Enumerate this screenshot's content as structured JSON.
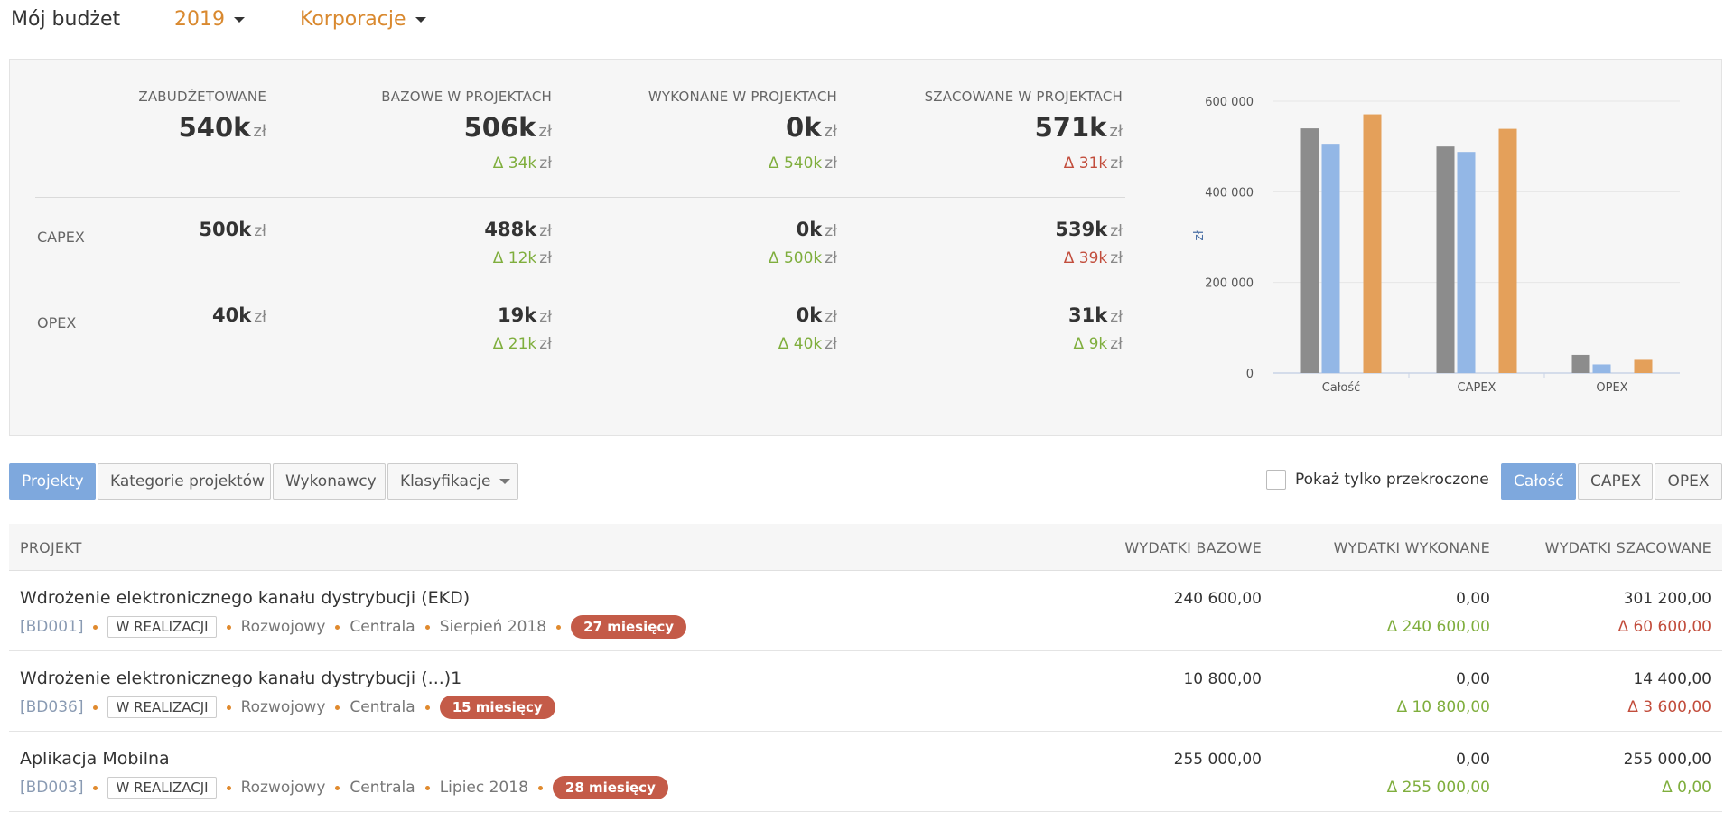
{
  "header": {
    "title": "Mój budżet",
    "year": "2019",
    "org": "Korporacje"
  },
  "summary": {
    "columns": [
      {
        "label": "ZABUDŻETOWANE"
      },
      {
        "label": "BAZOWE W PROJEKTACH"
      },
      {
        "label": "WYKONANE W PROJEKTACH"
      },
      {
        "label": "SZACOWANE W PROJEKTACH"
      }
    ],
    "unit": "zł",
    "total": [
      {
        "value": "540k",
        "delta": ""
      },
      {
        "value": "506k",
        "delta": "Δ 34k",
        "delta_status": "positive"
      },
      {
        "value": "0k",
        "delta": "Δ 540k",
        "delta_status": "positive"
      },
      {
        "value": "571k",
        "delta": "Δ 31k",
        "delta_status": "negative"
      }
    ],
    "capex": {
      "label": "CAPEX",
      "cells": [
        {
          "value": "500k",
          "delta": ""
        },
        {
          "value": "488k",
          "delta": "Δ 12k",
          "delta_status": "positive"
        },
        {
          "value": "0k",
          "delta": "Δ 500k",
          "delta_status": "positive"
        },
        {
          "value": "539k",
          "delta": "Δ 39k",
          "delta_status": "negative"
        }
      ]
    },
    "opex": {
      "label": "OPEX",
      "cells": [
        {
          "value": "40k",
          "delta": ""
        },
        {
          "value": "19k",
          "delta": "Δ 21k",
          "delta_status": "positive"
        },
        {
          "value": "0k",
          "delta": "Δ 40k",
          "delta_status": "positive"
        },
        {
          "value": "31k",
          "delta": "Δ 9k",
          "delta_status": "positive"
        }
      ]
    }
  },
  "chart_data": {
    "type": "bar",
    "categories": [
      "Całość",
      "CAPEX",
      "OPEX"
    ],
    "series": [
      {
        "values": [
          540000,
          500000,
          40000
        ],
        "color": "#8c8c8c"
      },
      {
        "values": [
          506000,
          488000,
          19000
        ],
        "color": "#93b7e6"
      },
      {
        "values": [
          0,
          0,
          0
        ],
        "color": "#7fae3d"
      },
      {
        "values": [
          571000,
          539000,
          31000
        ],
        "color": "#e4a05a"
      }
    ],
    "ylabel": "zł",
    "ylim": [
      0,
      600000
    ],
    "yticks": [
      0,
      200000,
      400000,
      600000
    ],
    "ytick_labels": [
      "0",
      "200 000",
      "400 000",
      "600 000"
    ],
    "grid": true
  },
  "toolbar": {
    "tabs": [
      "Projekty",
      "Kategorie projektów",
      "Wykonawcy",
      "Klasyfikacje"
    ],
    "active_tab": "Projekty",
    "checkbox_label": "Pokaż tylko przekroczone",
    "checkbox_checked": false,
    "scope": [
      "Całość",
      "CAPEX",
      "OPEX"
    ],
    "active_scope": "Całość"
  },
  "table": {
    "headers": {
      "project": "PROJEKT",
      "base": "WYDATKI BAZOWE",
      "done": "WYDATKI WYKONANE",
      "est": "WYDATKI SZACOWANE"
    },
    "rows": [
      {
        "name": "Wdrożenie elektronicznego kanału dystrybucji (EKD)",
        "code": "[BD001]",
        "status": "W REALIZACJI",
        "type": "Rozwojowy",
        "location": "Centrala",
        "date": "Sierpień 2018",
        "duration": "27 miesięcy",
        "base": "240 600,00",
        "done": "0,00",
        "done_delta": "Δ 240 600,00",
        "est": "301 200,00",
        "est_delta": "Δ 60 600,00",
        "est_delta_status": "negative"
      },
      {
        "name": "Wdrożenie elektronicznego kanału dystrybucji (...)1",
        "code": "[BD036]",
        "status": "W REALIZACJI",
        "type": "Rozwojowy",
        "location": "Centrala",
        "date": "",
        "duration": "15 miesięcy",
        "base": "10 800,00",
        "done": "0,00",
        "done_delta": "Δ 10 800,00",
        "est": "14 400,00",
        "est_delta": "Δ 3 600,00",
        "est_delta_status": "negative"
      },
      {
        "name": "Aplikacja Mobilna",
        "code": "[BD003]",
        "status": "W REALIZACJI",
        "type": "Rozwojowy",
        "location": "Centrala",
        "date": "Lipiec 2018",
        "duration": "28 miesięcy",
        "base": "255 000,00",
        "done": "0,00",
        "done_delta": "Δ 255 000,00",
        "est": "255 000,00",
        "est_delta": "Δ 0,00",
        "est_delta_status": "positive"
      }
    ]
  }
}
